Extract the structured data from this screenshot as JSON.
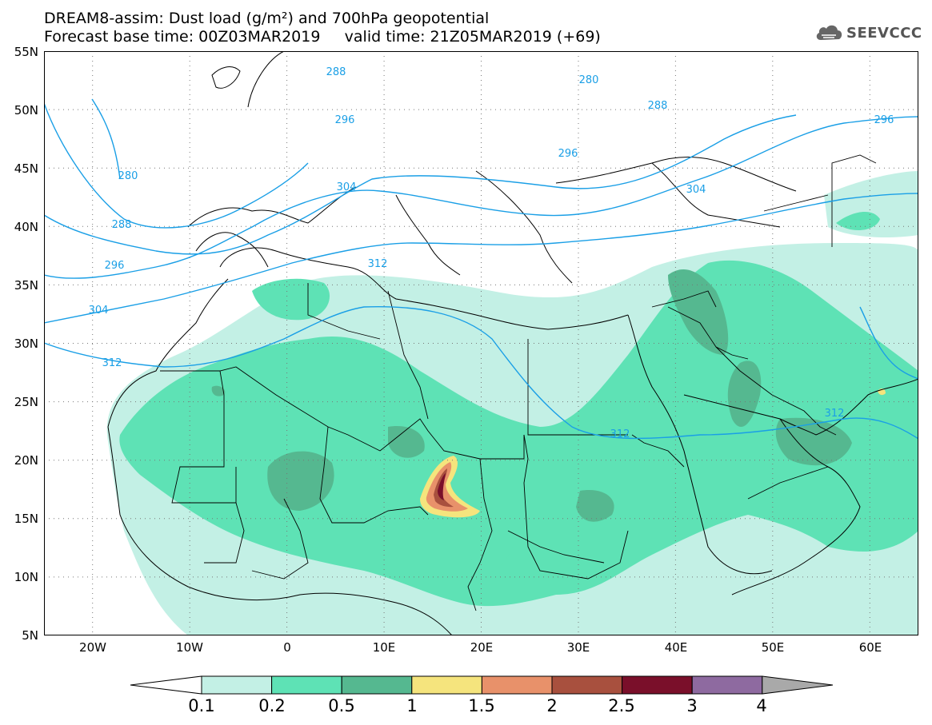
{
  "title": {
    "line1": "DREAM8-assim: Dust load (g/m²) and 700hPa geopotential",
    "line2": "Forecast base time: 00Z03MAR2019     valid time: 21Z05MAR2019 (+69)"
  },
  "logo": {
    "icon": "cloud-logo-icon",
    "text": "SEEVCCC"
  },
  "map": {
    "projection": "lat-lon",
    "lon_range": [
      -25,
      65
    ],
    "lat_range": [
      5,
      55
    ],
    "lat_ticks": [
      "5N",
      "10N",
      "15N",
      "20N",
      "25N",
      "30N",
      "35N",
      "40N",
      "45N",
      "50N",
      "55N"
    ],
    "lon_ticks": [
      "20W",
      "10W",
      "0",
      "10E",
      "20E",
      "30E",
      "40E",
      "50E",
      "60E"
    ],
    "grid": "dotted",
    "contour_labels": [
      "288",
      "280",
      "288",
      "296",
      "296",
      "296",
      "280",
      "288",
      "296",
      "304",
      "304",
      "304",
      "312",
      "312",
      "312",
      "312"
    ]
  },
  "colorbar": {
    "labels": [
      "0.1",
      "0.2",
      "0.5",
      "1",
      "1.5",
      "2",
      "2.5",
      "3",
      "4"
    ],
    "colors": [
      "#ffffff",
      "#c3f0e5",
      "#5ee2b5",
      "#55b890",
      "#f5e47d",
      "#e8916a",
      "#a8503e",
      "#7a0f2a",
      "#8e6aa0",
      "#a9a9a9"
    ]
  }
}
